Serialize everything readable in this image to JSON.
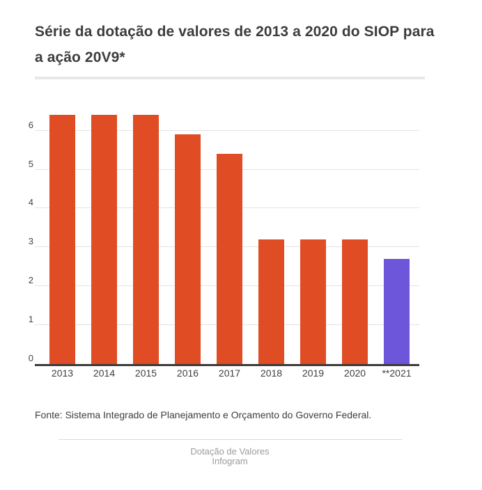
{
  "title": "Série da dotação de valores de 2013 a 2020 do SIOP para a ação 20V9*",
  "source_note": "Fonte: Sistema Integrado de Planejamento e Orçamento do Governo Federal.",
  "footer": {
    "line1": "Dotação de Valores",
    "line2": "Infogram"
  },
  "colors": {
    "bar_default": "#e04c23",
    "bar_highlight": "#6d56d9",
    "title_text": "#3c3c3c",
    "axis_line": "#3b3b3b",
    "gridline": "#e3e3e3",
    "tick_label": "#3f3f3f",
    "footer_text": "#9b9b9b"
  },
  "chart_data": {
    "type": "bar",
    "title": "Série da dotação de valores de 2013 a 2020 do SIOP para a ação 20V9*",
    "categories": [
      "2013",
      "2014",
      "2015",
      "2016",
      "2017",
      "2018",
      "2019",
      "2020",
      "**2021"
    ],
    "values": [
      6.4,
      6.4,
      6.4,
      5.9,
      5.4,
      3.2,
      3.2,
      3.2,
      2.7
    ],
    "highlight_index": 8,
    "xlabel": "",
    "ylabel": "",
    "yticks": [
      0,
      1,
      2,
      3,
      4,
      5,
      6
    ],
    "ylim": [
      0,
      6.85
    ],
    "grid": true,
    "legend": false
  }
}
